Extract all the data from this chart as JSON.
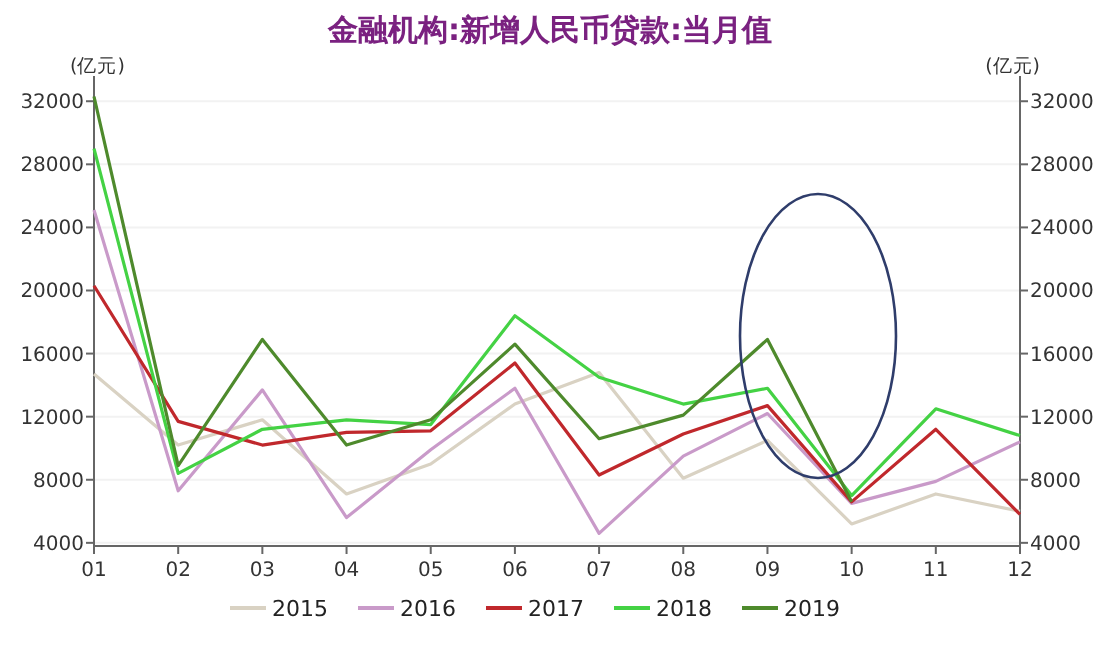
{
  "chart_data": {
    "type": "line",
    "title": "金融机构:新增人民币贷款:当月值",
    "ylabel": "(亿元)",
    "y2label": "(亿元)",
    "categories": [
      "01",
      "02",
      "03",
      "04",
      "05",
      "06",
      "07",
      "08",
      "09",
      "10",
      "11",
      "12"
    ],
    "ylim": [
      3800,
      33600
    ],
    "yticks": [
      4000,
      8000,
      12000,
      16000,
      20000,
      24000,
      28000,
      32000
    ],
    "y2lim": [
      3800,
      33600
    ],
    "y2ticks": [
      4000,
      8000,
      12000,
      16000,
      20000,
      24000,
      28000,
      32000
    ],
    "grid": "y",
    "legend": "bottom",
    "marker": "none",
    "line_style": "solid",
    "series": [
      {
        "name": "2015",
        "color": "#d9d2c3",
        "values": [
          14700,
          10200,
          11800,
          7100,
          9000,
          12800,
          14800,
          8100,
          10500,
          5200,
          7100,
          6000
        ]
      },
      {
        "name": "2016",
        "color": "#c99ac9",
        "values": [
          25100,
          7300,
          13700,
          5600,
          9900,
          13800,
          4600,
          9500,
          12200,
          6500,
          7900,
          10400
        ]
      },
      {
        "name": "2017",
        "color": "#c0282c",
        "values": [
          20300,
          11700,
          10200,
          11000,
          11100,
          15400,
          8300,
          10900,
          12700,
          6600,
          11200,
          5800
        ]
      },
      {
        "name": "2018",
        "color": "#44d244",
        "values": [
          29000,
          8400,
          11200,
          11800,
          11500,
          18400,
          14500,
          12800,
          13800,
          7000,
          12500,
          10800
        ]
      },
      {
        "name": "2019",
        "color": "#4e8a2c",
        "values": [
          32300,
          8900,
          16900,
          10200,
          11800,
          16600,
          10600,
          12100,
          16900,
          6600,
          null,
          null
        ]
      }
    ]
  }
}
